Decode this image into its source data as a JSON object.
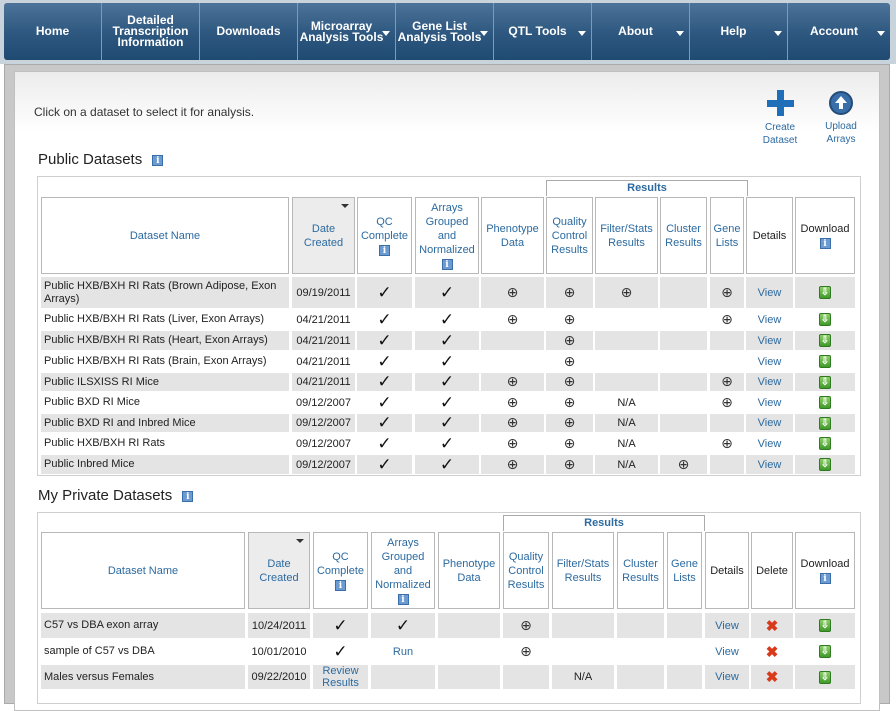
{
  "nav": [
    {
      "label": "Home",
      "caret": false
    },
    {
      "label": "Detailed Transcription Information",
      "caret": false
    },
    {
      "label": "Downloads",
      "caret": false
    },
    {
      "label": "Microarray Analysis Tools",
      "caret": true
    },
    {
      "label": "Gene List Analysis Tools",
      "caret": true
    },
    {
      "label": "QTL Tools",
      "caret": true
    },
    {
      "label": "About",
      "caret": true
    },
    {
      "label": "Help",
      "caret": true
    },
    {
      "label": "Account",
      "caret": true
    }
  ],
  "instruction": "Click on a dataset to select it for analysis.",
  "actions": {
    "create": "Create Dataset",
    "upload": "Upload Arrays"
  },
  "icons": {
    "check": "✓",
    "magnifier": "⊕",
    "download": "⇩",
    "delete": "✖",
    "info": "i"
  },
  "public": {
    "title": "Public Datasets",
    "results_label": "Results",
    "headers": [
      "Dataset Name",
      "Date Created",
      "QC Complete",
      "Arrays Grouped and Normalized",
      "Phenotype Data",
      "Quality Control Results",
      "Filter/Stats Results",
      "Cluster Results",
      "Gene Lists",
      "Details",
      "Download"
    ],
    "rows": [
      {
        "name": "Public HXB/BXH RI Rats (Brown Adipose, Exon Arrays)",
        "date": "09/19/2011",
        "qc": true,
        "norm": true,
        "pheno": true,
        "qcr": true,
        "filter": "mag",
        "cluster": "",
        "genes": true,
        "details": "View"
      },
      {
        "name": "Public HXB/BXH RI Rats (Liver, Exon Arrays)",
        "date": "04/21/2011",
        "qc": true,
        "norm": true,
        "pheno": true,
        "qcr": true,
        "filter": "",
        "cluster": "",
        "genes": true,
        "details": "View"
      },
      {
        "name": "Public HXB/BXH RI Rats (Heart, Exon Arrays)",
        "date": "04/21/2011",
        "qc": true,
        "norm": true,
        "pheno": false,
        "qcr": true,
        "filter": "",
        "cluster": "",
        "genes": false,
        "details": "View"
      },
      {
        "name": "Public HXB/BXH RI Rats (Brain, Exon Arrays)",
        "date": "04/21/2011",
        "qc": true,
        "norm": true,
        "pheno": false,
        "qcr": true,
        "filter": "",
        "cluster": "",
        "genes": false,
        "details": "View"
      },
      {
        "name": "Public ILSXISS RI Mice",
        "date": "04/21/2011",
        "qc": true,
        "norm": true,
        "pheno": true,
        "qcr": true,
        "filter": "",
        "cluster": "",
        "genes": true,
        "details": "View"
      },
      {
        "name": "Public BXD RI Mice",
        "date": "09/12/2007",
        "qc": true,
        "norm": true,
        "pheno": true,
        "qcr": true,
        "filter": "N/A",
        "cluster": "",
        "genes": true,
        "details": "View"
      },
      {
        "name": "Public BXD RI and Inbred Mice",
        "date": "09/12/2007",
        "qc": true,
        "norm": true,
        "pheno": true,
        "qcr": true,
        "filter": "N/A",
        "cluster": "",
        "genes": false,
        "details": "View"
      },
      {
        "name": "Public HXB/BXH RI Rats",
        "date": "09/12/2007",
        "qc": true,
        "norm": true,
        "pheno": true,
        "qcr": true,
        "filter": "N/A",
        "cluster": "",
        "genes": true,
        "details": "View"
      },
      {
        "name": "Public Inbred Mice",
        "date": "09/12/2007",
        "qc": true,
        "norm": true,
        "pheno": true,
        "qcr": true,
        "filter": "N/A",
        "cluster": "mag",
        "genes": false,
        "details": "View"
      }
    ]
  },
  "private": {
    "title": "My Private Datasets",
    "results_label": "Results",
    "headers": [
      "Dataset Name",
      "Date Created",
      "QC Complete",
      "Arrays Grouped and Normalized",
      "Phenotype Data",
      "Quality Control Results",
      "Filter/Stats Results",
      "Cluster Results",
      "Gene Lists",
      "Details",
      "Delete",
      "Download"
    ],
    "rows": [
      {
        "name": "C57 vs DBA exon array",
        "date": "10/24/2011",
        "qc": "check",
        "norm": "check",
        "qcr": true,
        "filter": "",
        "details": "View"
      },
      {
        "name": "sample of C57 vs DBA",
        "date": "10/01/2010",
        "qc": "check",
        "norm": "Run",
        "qcr": true,
        "filter": "",
        "details": "View"
      },
      {
        "name": "Males versus Females",
        "date": "09/22/2010",
        "qc": "Review Results",
        "norm": "",
        "qcr": false,
        "filter": "N/A",
        "details": "View"
      }
    ]
  }
}
